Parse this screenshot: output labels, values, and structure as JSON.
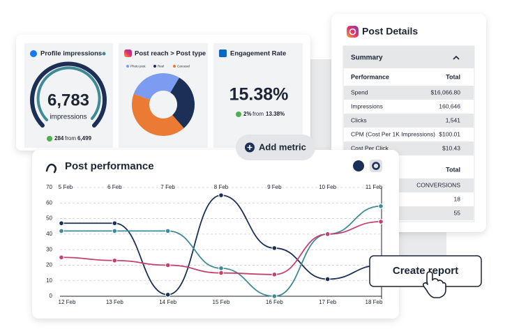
{
  "cards": [
    {
      "title": "Profile impressions",
      "value": "6,783",
      "value_label": "impressions",
      "change": "284",
      "from": "from",
      "previous": "6,499"
    },
    {
      "title": "Post reach > Post type"
    },
    {
      "title": "Engagement Rate",
      "value": "15.38%",
      "change": "2%",
      "from": "from",
      "previous": "13.38%"
    }
  ],
  "add_metric": "Add metric",
  "create_report": "Create report",
  "post_details": {
    "title": "Post Details",
    "summary": "Summary",
    "header": [
      "Performance",
      "Total"
    ],
    "rows": [
      [
        "Spend",
        "$16,066.80"
      ],
      [
        "Impressions",
        "160,646"
      ],
      [
        "Clicks",
        "1,541"
      ],
      [
        "CPM (Cost Per 1K Impressions)",
        "$100.01"
      ],
      [
        "Cost Per Click",
        "$10.43"
      ]
    ],
    "header2": "Total",
    "rows2": [
      "CONVERSIONS",
      "18",
      "55"
    ]
  },
  "chart_data": [
    {
      "type": "pie",
      "categories": [
        "Photo post",
        "Reel",
        "Carousel"
      ],
      "values": [
        28,
        30,
        42
      ],
      "colors": [
        "#7b9cf0",
        "#1b2f57",
        "#ea7a34"
      ]
    },
    {
      "type": "line",
      "title": "Post performance",
      "top_categories": [
        "5 Feb",
        "6 Feb",
        "7 Feb",
        "8 Feb",
        "9 Feb",
        "10 Feb",
        "11 Feb"
      ],
      "categories": [
        "12 Feb",
        "13 Feb",
        "14 Feb",
        "15 Feb",
        "16 Feb",
        "17 Feb",
        "18 Feb"
      ],
      "ylim": [
        0,
        70
      ],
      "yticks": [
        0,
        10,
        20,
        30,
        40,
        50,
        60,
        70
      ],
      "grid": true,
      "series": [
        {
          "color": "#1b2f57",
          "values": [
            47,
            47,
            1,
            65,
            31,
            11,
            20
          ]
        },
        {
          "color": "#3f8a96",
          "values": [
            42,
            42,
            42,
            18,
            0,
            40,
            58
          ]
        },
        {
          "color": "#c2426f",
          "values": [
            25,
            23,
            20,
            15,
            14,
            40,
            48
          ]
        }
      ]
    }
  ]
}
